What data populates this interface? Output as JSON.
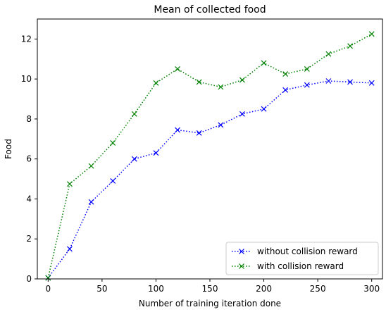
{
  "chart_data": {
    "type": "line",
    "title": "Mean of collected food",
    "xlabel": "Number of training iteration done",
    "ylabel": "Food",
    "xlim": [
      -10,
      310
    ],
    "ylim": [
      0,
      13
    ],
    "xticks": [
      0,
      50,
      100,
      150,
      200,
      250,
      300
    ],
    "yticks": [
      0,
      2,
      4,
      6,
      8,
      10,
      12
    ],
    "grid": false,
    "legend_position": "bottom-right",
    "x": [
      0,
      20,
      40,
      60,
      80,
      100,
      120,
      140,
      160,
      180,
      200,
      220,
      240,
      260,
      280,
      300
    ],
    "series": [
      {
        "name": "without collision reward",
        "color": "#0000ff",
        "marker": "x",
        "linestyle": "dotted",
        "values": [
          0.05,
          1.5,
          3.85,
          4.9,
          6.0,
          6.3,
          7.45,
          7.3,
          7.7,
          8.25,
          8.5,
          9.45,
          9.7,
          9.9,
          9.85,
          9.8
        ]
      },
      {
        "name": "with collision reward",
        "color": "#008000",
        "marker": "x",
        "linestyle": "dotted",
        "values": [
          0.05,
          4.75,
          5.65,
          6.8,
          8.25,
          9.8,
          10.5,
          9.85,
          9.6,
          9.95,
          10.8,
          10.25,
          10.5,
          11.25,
          11.65,
          12.25
        ]
      }
    ]
  }
}
